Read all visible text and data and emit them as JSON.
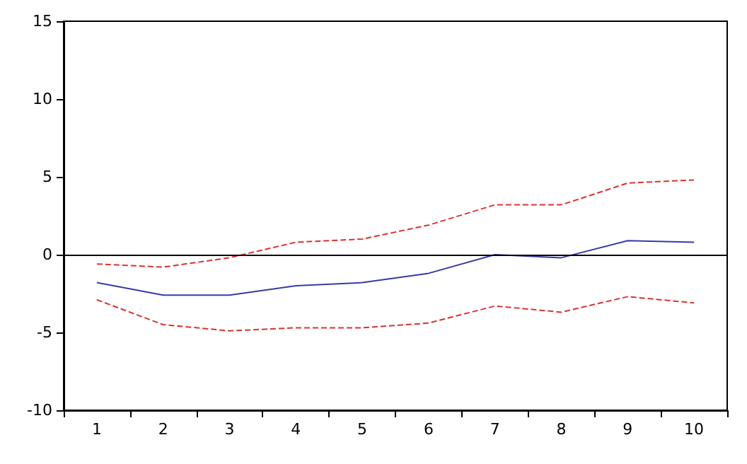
{
  "chart_data": {
    "type": "line",
    "categories": [
      "1",
      "2",
      "3",
      "4",
      "5",
      "6",
      "7",
      "8",
      "9",
      "10"
    ],
    "series": [
      {
        "color": "#3a3aa8",
        "line_style": "solid",
        "values": [
          -1.8,
          -2.6,
          -2.6,
          -2.0,
          -1.8,
          -1.2,
          0.0,
          -0.2,
          0.9,
          0.8
        ]
      },
      {
        "color": "#e03030",
        "line_style": "dashed",
        "values": [
          -0.6,
          -0.8,
          -0.2,
          0.8,
          1.0,
          1.9,
          3.2,
          3.2,
          4.6,
          4.8
        ]
      },
      {
        "color": "#e03030",
        "line_style": "dashed",
        "values": [
          -2.9,
          -4.5,
          -4.9,
          -4.7,
          -4.7,
          -4.4,
          -3.3,
          -3.7,
          -2.7,
          -3.1
        ]
      }
    ],
    "ylim": [
      -10,
      15
    ],
    "yticks": [
      -10,
      -5,
      0,
      5,
      10,
      15
    ],
    "grid": false,
    "marker": "none",
    "ref_lines": [
      {
        "axis": "y",
        "value": 0,
        "color": "#000000",
        "line_style": "solid"
      }
    ]
  }
}
